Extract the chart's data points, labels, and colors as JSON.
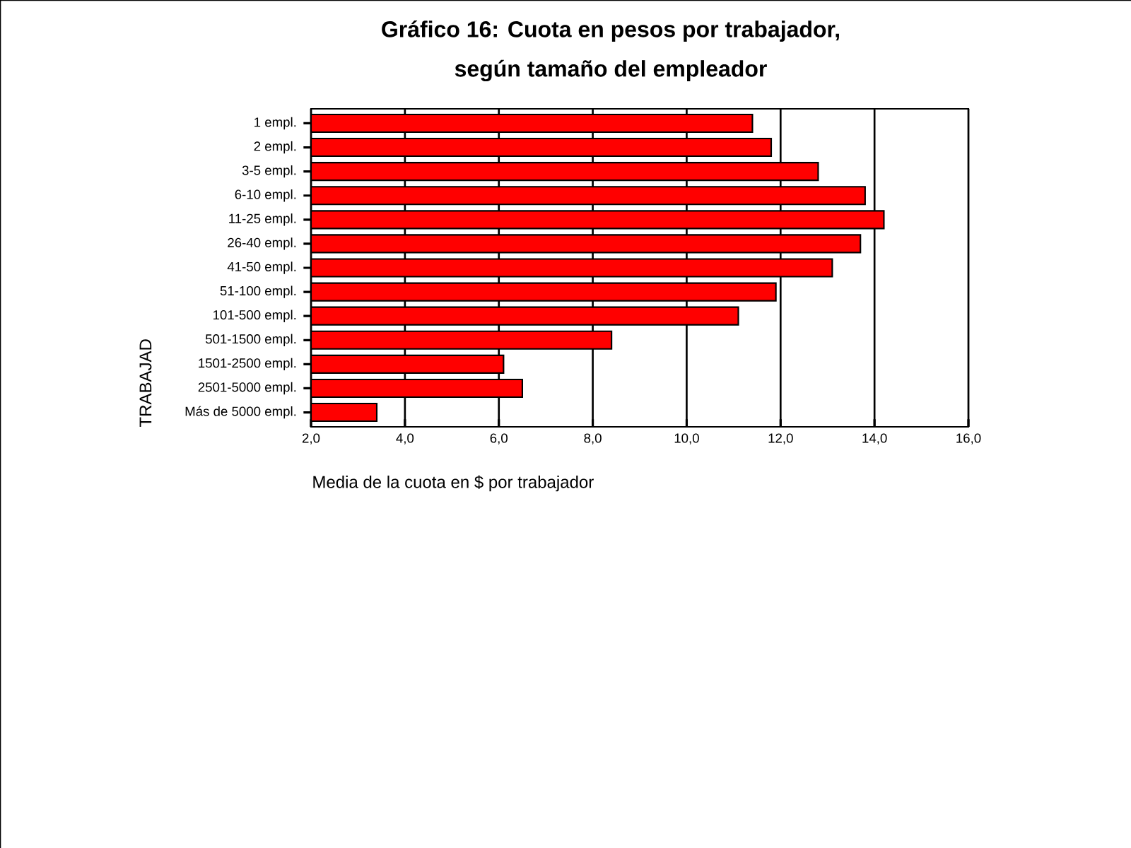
{
  "chart_data": {
    "type": "bar",
    "orientation": "horizontal",
    "title": "Gráfico 16: Cuota en pesos por trabajador,",
    "subtitle": "según tamaño del empleador",
    "xlabel": "Media de la cuota en $ por trabajador",
    "ylabel": "TRABAJAD",
    "categories": [
      "1 empl.",
      "2 empl.",
      "3-5 empl.",
      "6-10 empl.",
      "11-25 empl.",
      "26-40 empl.",
      "41-50 empl.",
      "51-100 empl.",
      "101-500 empl.",
      "501-1500 empl.",
      "1501-2500 empl.",
      "2501-5000 empl.",
      "Más de 5000 empl."
    ],
    "values": [
      11.4,
      11.8,
      12.8,
      13.8,
      14.2,
      13.7,
      13.1,
      11.9,
      11.1,
      8.4,
      6.1,
      6.5,
      3.4
    ],
    "color": "#ff0000",
    "xlim": [
      2,
      16
    ],
    "xticks": [
      {
        "value": 2,
        "label": "2,0"
      },
      {
        "value": 4,
        "label": "4,0"
      },
      {
        "value": 6,
        "label": "6,0"
      },
      {
        "value": 8,
        "label": "8,0"
      },
      {
        "value": 10,
        "label": "10,0"
      },
      {
        "value": 12,
        "label": "12,0"
      },
      {
        "value": 14,
        "label": "14,0"
      },
      {
        "value": 16,
        "label": "16,0"
      }
    ],
    "grid": "x"
  }
}
